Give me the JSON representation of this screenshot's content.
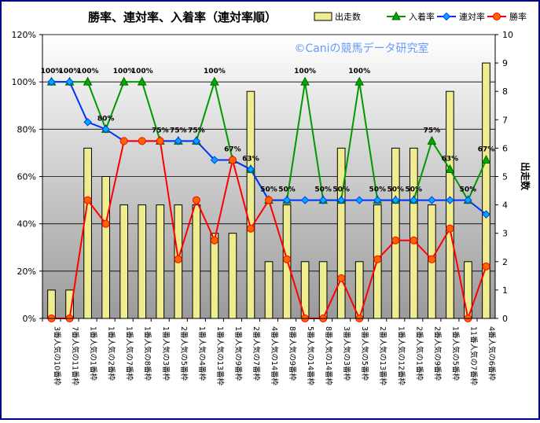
{
  "chart_data": {
    "type": "bar",
    "title": "勝率、連対率、入着率（連対率順）",
    "watermark": "©Caniの競馬データ研究室",
    "y2label": "出走数",
    "ylim": [
      0,
      120
    ],
    "y2lim": [
      0,
      10
    ],
    "yticks": [
      "0%",
      "20%",
      "40%",
      "60%",
      "80%",
      "100%",
      "120%"
    ],
    "y2ticks": [
      "0",
      "1",
      "2",
      "3",
      "4",
      "5",
      "6",
      "7",
      "8",
      "9",
      "10"
    ],
    "legend_position": "top-right",
    "colors": {
      "bar_fill": "#f0ec90",
      "bar_stroke": "#000000",
      "place": "#009900",
      "place_marker": "#00aa00",
      "quinella": "#0033ff",
      "quinella_marker": "#00aaff",
      "win": "#ff0000",
      "win_marker": "#ff6600",
      "border": "#000080"
    },
    "categories": [
      "3番人気の10番枠",
      "7番人気の11番枠",
      "1番人気の1番枠",
      "1番人気の2番枠",
      "1番人気の7番枠",
      "1番人気の8番枠",
      "1番人気の3番枠",
      "2番人気の5番枠",
      "1番人気の4番枠",
      "1番人気の13番枠",
      "1番人気の9番枠",
      "2番人気の7番枠",
      "4番人気の14番枠",
      "8番人気の9番枠",
      "5番人気の14番枠",
      "8番人気の14番枠",
      "3番人気の3番枠",
      "3番人気の5番枠",
      "2番人気の13番枠",
      "1番人気の12番枠",
      "2番人気の1番枠",
      "2番人気の9番枠",
      "1番人気の5番枠",
      "11番人気の7番枠",
      "4番人気の6番枠"
    ],
    "series": [
      {
        "name": "出走数",
        "kind": "bar",
        "axis": "right",
        "values": [
          1,
          1,
          6,
          5,
          4,
          4,
          4,
          4,
          4,
          3,
          3,
          8,
          2,
          4,
          2,
          2,
          6,
          2,
          4,
          6,
          6,
          4,
          8,
          2,
          9
        ]
      },
      {
        "name": "入着率",
        "kind": "line",
        "axis": "left",
        "values": [
          100,
          100,
          100,
          80,
          100,
          100,
          75,
          75,
          75,
          100,
          67,
          63,
          50,
          50,
          100,
          50,
          50,
          100,
          50,
          50,
          50,
          75,
          63,
          50,
          67
        ]
      },
      {
        "name": "連対率",
        "kind": "line",
        "axis": "left",
        "values": [
          100,
          100,
          83,
          80,
          75,
          75,
          75,
          75,
          75,
          67,
          67,
          63,
          50,
          50,
          50,
          50,
          50,
          50,
          50,
          50,
          50,
          50,
          50,
          50,
          44
        ]
      },
      {
        "name": "勝率",
        "kind": "line",
        "axis": "left",
        "values": [
          0,
          0,
          50,
          40,
          75,
          75,
          75,
          25,
          50,
          33,
          67,
          38,
          50,
          25,
          0,
          0,
          17,
          0,
          25,
          33,
          33,
          25,
          38,
          0,
          22
        ]
      }
    ],
    "data_labels": [
      {
        "index": 0,
        "text": "100%"
      },
      {
        "index": 1,
        "text": "100%"
      },
      {
        "index": 2,
        "text": "100%"
      },
      {
        "index": 3,
        "text": "80%"
      },
      {
        "index": 4,
        "text": "100%"
      },
      {
        "index": 5,
        "text": "100%"
      },
      {
        "index": 6,
        "text": "75%"
      },
      {
        "index": 7,
        "text": "75%"
      },
      {
        "index": 8,
        "text": "75%"
      },
      {
        "index": 9,
        "text": "100%"
      },
      {
        "index": 10,
        "text": "67%"
      },
      {
        "index": 11,
        "text": "63%"
      },
      {
        "index": 12,
        "text": "50%"
      },
      {
        "index": 13,
        "text": "50%"
      },
      {
        "index": 14,
        "text": "100%"
      },
      {
        "index": 15,
        "text": "50%"
      },
      {
        "index": 16,
        "text": "50%"
      },
      {
        "index": 17,
        "text": "100%"
      },
      {
        "index": 18,
        "text": "50%"
      },
      {
        "index": 19,
        "text": "50%"
      },
      {
        "index": 20,
        "text": "50%"
      },
      {
        "index": 21,
        "text": "75%"
      },
      {
        "index": 22,
        "text": "63%"
      },
      {
        "index": 23,
        "text": "50%"
      },
      {
        "index": 24,
        "text": "67%"
      }
    ]
  }
}
